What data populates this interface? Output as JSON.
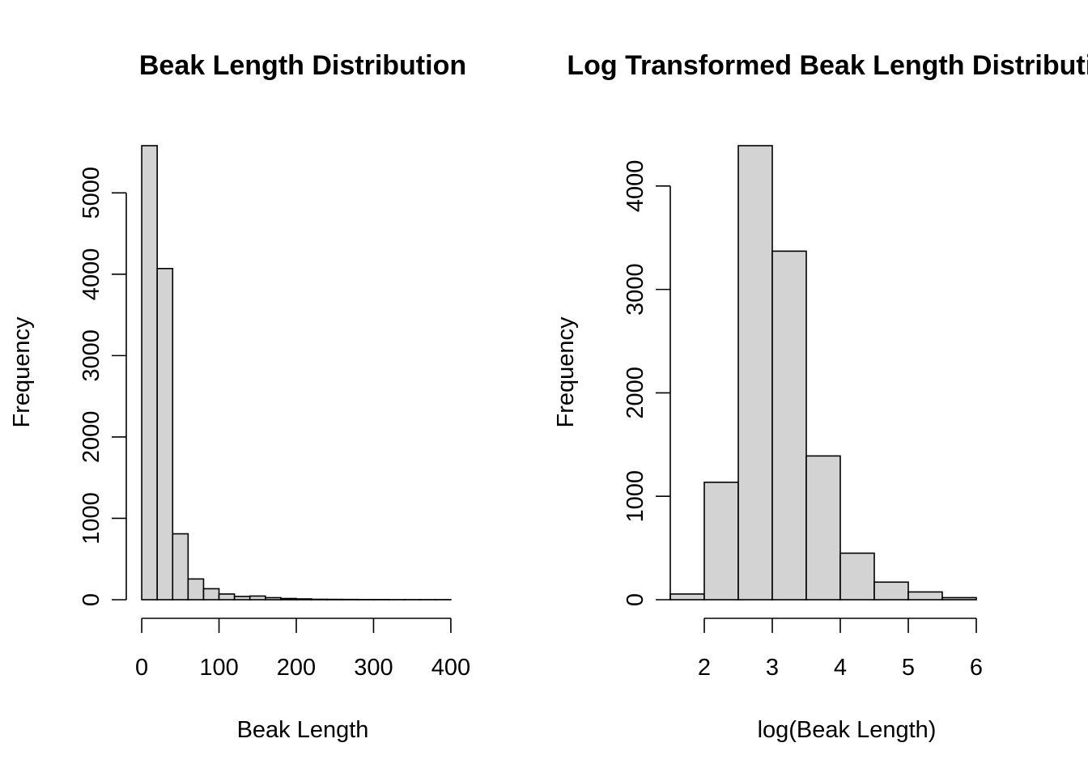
{
  "chart_data": [
    {
      "type": "bar",
      "title": "Beak Length Distribution",
      "xlabel": "Beak Length",
      "ylabel": "Frequency",
      "xlim": [
        -20,
        420
      ],
      "ylim": [
        0,
        5580
      ],
      "bin_width": 20,
      "bin_starts": [
        0,
        20,
        40,
        60,
        80,
        100,
        120,
        140,
        160,
        180,
        200,
        220,
        240,
        260,
        280,
        300,
        320,
        340,
        360,
        380
      ],
      "values": [
        5580,
        4070,
        810,
        255,
        135,
        70,
        40,
        45,
        25,
        15,
        10,
        5,
        4,
        3,
        2,
        2,
        1,
        1,
        1,
        1
      ],
      "xticks": [
        0,
        100,
        200,
        300,
        400
      ],
      "yticks": [
        0,
        1000,
        2000,
        3000,
        4000,
        5000
      ]
    },
    {
      "type": "bar",
      "title": "Log Transformed Beak Length Distribution",
      "xlabel": "log(Beak Length)",
      "ylabel": "Frequency",
      "xlim": [
        1.5,
        6.5
      ],
      "ylim": [
        0,
        4390
      ],
      "bin_width": 0.5,
      "bin_starts": [
        1.5,
        2.0,
        2.5,
        3.0,
        3.5,
        4.0,
        4.5,
        5.0,
        5.5
      ],
      "values": [
        55,
        1135,
        4390,
        3370,
        1390,
        450,
        170,
        75,
        20
      ],
      "xticks": [
        2,
        3,
        4,
        5,
        6
      ],
      "yticks": [
        0,
        1000,
        2000,
        3000,
        4000
      ]
    }
  ]
}
